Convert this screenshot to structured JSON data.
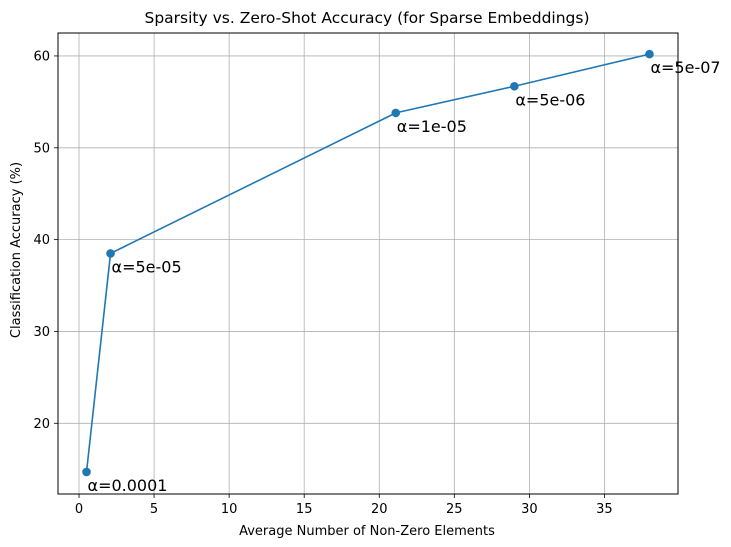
{
  "chart_data": {
    "type": "line",
    "title": "Sparsity vs. Zero-Shot Accuracy (for Sparse Embeddings)",
    "xlabel": "Average Number of Non-Zero Elements",
    "ylabel": "Classification Accuracy (%)",
    "xlim": [
      -1.4,
      39.9
    ],
    "ylim": [
      12.3,
      62.5
    ],
    "xticks": [
      0,
      5,
      10,
      15,
      20,
      25,
      30,
      35
    ],
    "yticks": [
      20,
      30,
      40,
      50,
      60
    ],
    "grid": true,
    "series": [
      {
        "color": "#1f77b4",
        "marker": "circle",
        "points": [
          {
            "x": 0.5,
            "y": 14.7,
            "label": "α=0.0001"
          },
          {
            "x": 2.1,
            "y": 38.5,
            "label": "α=5e-05"
          },
          {
            "x": 21.1,
            "y": 53.8,
            "label": "α=1e-05"
          },
          {
            "x": 29.0,
            "y": 56.7,
            "label": "α=5e-06"
          },
          {
            "x": 38.0,
            "y": 60.2,
            "label": "α=5e-07"
          }
        ]
      }
    ]
  }
}
